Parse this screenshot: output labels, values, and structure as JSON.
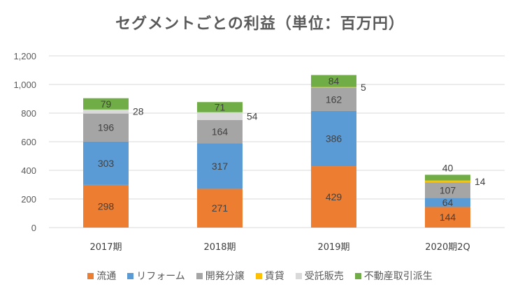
{
  "chart_data": {
    "type": "bar",
    "stacked": true,
    "title": "セグメントごとの利益（単位：百万円）",
    "xlabel": "",
    "ylabel": "",
    "ylim": [
      0,
      1200
    ],
    "yticks": [
      0,
      200,
      400,
      600,
      800,
      1000,
      1200
    ],
    "ytick_labels": [
      "0",
      "200",
      "400",
      "600",
      "800",
      "1,000",
      "1,200"
    ],
    "grid": true,
    "legend_position": "bottom",
    "categories": [
      "2017期",
      "2018期",
      "2019期",
      "2020期2Q"
    ],
    "series": [
      {
        "name": "流通",
        "color": "#ED7D31",
        "values": [
          298,
          271,
          429,
          144
        ]
      },
      {
        "name": "リフォーム",
        "color": "#5B9BD5",
        "values": [
          303,
          317,
          386,
          64
        ]
      },
      {
        "name": "開発分譲",
        "color": "#A5A5A5",
        "values": [
          196,
          164,
          162,
          107
        ]
      },
      {
        "name": "賃貸",
        "color": "#FFC000",
        "values": [
          0,
          0,
          5,
          14
        ]
      },
      {
        "name": "受託販売",
        "color": "#D9D9D9",
        "values": [
          28,
          54,
          0,
          0
        ]
      },
      {
        "name": "不動産取引派生",
        "color": "#70AD47",
        "values": [
          79,
          71,
          84,
          40
        ]
      }
    ],
    "data_labels": [
      {
        "category": "2017期",
        "series": "受託販売",
        "text": "28",
        "placement": "outside-right"
      },
      {
        "category": "2018期",
        "series": "受託販売",
        "text": "54",
        "placement": "outside-right"
      },
      {
        "category": "2019期",
        "series": "賃貸",
        "text": "5",
        "placement": "outside-right"
      },
      {
        "category": "2020期2Q",
        "series": "賃貸",
        "text": "14",
        "placement": "outside-right"
      },
      {
        "category": "2020期2Q",
        "series": "不動産取引派生",
        "text": "40",
        "placement": "above"
      }
    ]
  }
}
